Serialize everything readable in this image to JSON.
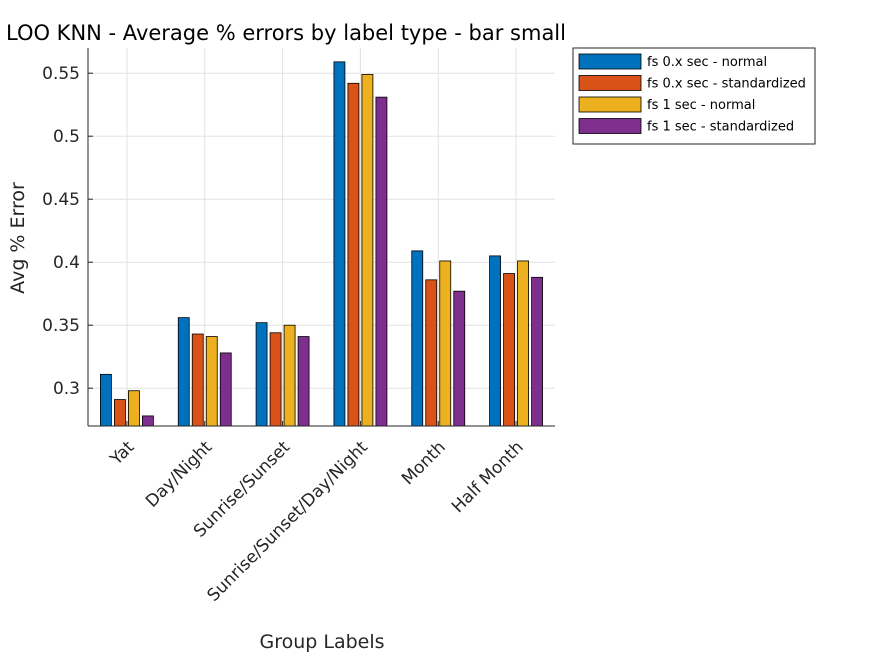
{
  "chart_data": {
    "type": "bar",
    "title": "LOO KNN - Average % errors by label type - bar small",
    "xlabel": "Group Labels",
    "ylabel": "Avg % Error",
    "categories": [
      "Yat",
      "Day/Night",
      "Sunrise/Sunset",
      "Sunrise/Sunset/Day/Night",
      "Month",
      "Half Month"
    ],
    "series": [
      {
        "name": "fs 0.x sec - normal",
        "color": "#0072BD",
        "values": [
          0.311,
          0.356,
          0.352,
          0.559,
          0.409,
          0.405
        ]
      },
      {
        "name": "fs 0.x sec - standardized",
        "color": "#D95319",
        "values": [
          0.291,
          0.343,
          0.344,
          0.542,
          0.386,
          0.391
        ]
      },
      {
        "name": "fs 1 sec - normal",
        "color": "#EDB120",
        "values": [
          0.298,
          0.341,
          0.35,
          0.549,
          0.401,
          0.401
        ]
      },
      {
        "name": "fs 1 sec - standardized",
        "color": "#7E2F8E",
        "values": [
          0.278,
          0.328,
          0.341,
          0.531,
          0.377,
          0.388
        ]
      }
    ],
    "ylim": [
      0.27,
      0.57
    ],
    "yticks": [
      "0.3",
      "0.35",
      "0.4",
      "0.45",
      "0.5",
      "0.55"
    ],
    "grid": true,
    "legend_position": "outside-top-right"
  }
}
